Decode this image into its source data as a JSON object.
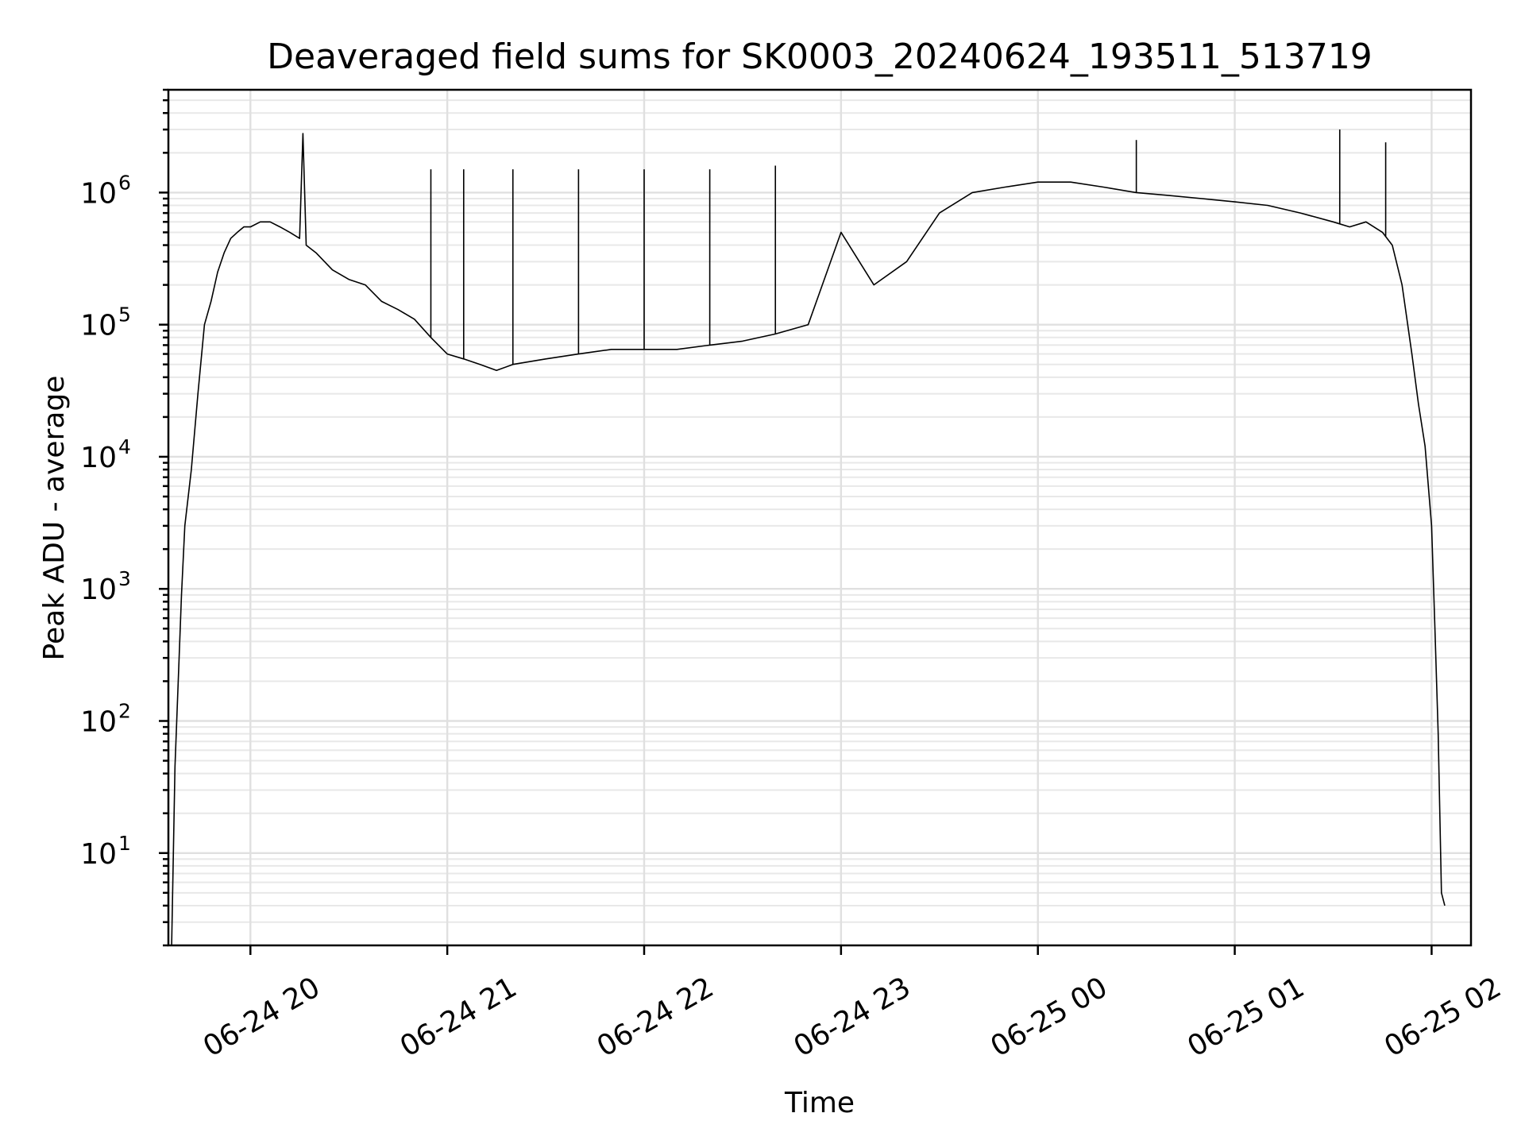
{
  "chart_data": {
    "type": "line",
    "title": "Deaveraged field sums for SK0003_20240624_193511_513719",
    "xlabel": "Time",
    "ylabel": "Peak ADU - average",
    "yscale": "log",
    "ylim": [
      2,
      6000000
    ],
    "xlim": [
      "2024-06-24 19:35",
      "2024-06-25 02:12"
    ],
    "grid": true,
    "legend": "none",
    "line_color": "#000000",
    "x_ticks": [
      {
        "value": "2024-06-24 20:00",
        "label": "06-24 20"
      },
      {
        "value": "2024-06-24 21:00",
        "label": "06-24 21"
      },
      {
        "value": "2024-06-24 22:00",
        "label": "06-24 22"
      },
      {
        "value": "2024-06-24 23:00",
        "label": "06-24 23"
      },
      {
        "value": "2024-06-25 00:00",
        "label": "06-25 00"
      },
      {
        "value": "2024-06-25 01:00",
        "label": "06-25 01"
      },
      {
        "value": "2024-06-25 02:00",
        "label": "06-25 02"
      }
    ],
    "y_ticks": [
      {
        "value": 10,
        "base": "10",
        "exp": "1"
      },
      {
        "value": 100,
        "base": "10",
        "exp": "2"
      },
      {
        "value": 1000,
        "base": "10",
        "exp": "3"
      },
      {
        "value": 10000,
        "base": "10",
        "exp": "4"
      },
      {
        "value": 100000,
        "base": "10",
        "exp": "5"
      },
      {
        "value": 1000000,
        "base": "10",
        "exp": "6"
      }
    ],
    "series": [
      {
        "x": [
          "2024-06-24 19:36",
          "2024-06-24 19:37",
          "2024-06-24 19:38",
          "2024-06-24 19:39",
          "2024-06-24 19:40",
          "2024-06-24 19:42",
          "2024-06-24 19:44",
          "2024-06-24 19:46",
          "2024-06-24 19:48",
          "2024-06-24 19:50",
          "2024-06-24 19:52",
          "2024-06-24 19:54",
          "2024-06-24 19:56",
          "2024-06-24 19:58",
          "2024-06-24 20:00",
          "2024-06-24 20:03",
          "2024-06-24 20:06",
          "2024-06-24 20:09",
          "2024-06-24 20:12",
          "2024-06-24 20:15",
          "2024-06-24 20:16",
          "2024-06-24 20:17",
          "2024-06-24 20:20",
          "2024-06-24 20:25",
          "2024-06-24 20:30",
          "2024-06-24 20:35",
          "2024-06-24 20:40",
          "2024-06-24 20:45",
          "2024-06-24 20:50",
          "2024-06-24 20:55",
          "2024-06-24 21:00",
          "2024-06-24 21:05",
          "2024-06-24 21:10",
          "2024-06-24 21:15",
          "2024-06-24 21:20",
          "2024-06-24 21:30",
          "2024-06-24 21:40",
          "2024-06-24 21:50",
          "2024-06-24 22:00",
          "2024-06-24 22:10",
          "2024-06-24 22:20",
          "2024-06-24 22:30",
          "2024-06-24 22:40",
          "2024-06-24 22:50",
          "2024-06-24 23:00",
          "2024-06-24 23:10",
          "2024-06-24 23:20",
          "2024-06-24 23:30",
          "2024-06-24 23:40",
          "2024-06-24 23:50",
          "2024-06-25 00:00",
          "2024-06-25 00:10",
          "2024-06-25 00:20",
          "2024-06-25 00:30",
          "2024-06-25 00:40",
          "2024-06-25 00:50",
          "2024-06-25 01:00",
          "2024-06-25 01:10",
          "2024-06-25 01:20",
          "2024-06-25 01:30",
          "2024-06-25 01:35",
          "2024-06-25 01:40",
          "2024-06-25 01:45",
          "2024-06-25 01:48",
          "2024-06-25 01:51",
          "2024-06-25 01:54",
          "2024-06-25 01:56",
          "2024-06-25 01:58",
          "2024-06-25 02:00",
          "2024-06-25 02:01",
          "2024-06-25 02:02",
          "2024-06-25 02:03",
          "2024-06-25 02:04"
        ],
        "y": [
          2,
          45,
          200,
          900,
          3000,
          8000,
          30000,
          100000,
          150000,
          250000,
          350000,
          450000,
          500000,
          550000,
          550000,
          600000,
          600000,
          550000,
          500000,
          450000,
          2800000,
          400000,
          350000,
          260000,
          220000,
          200000,
          150000,
          130000,
          110000,
          80000,
          60000,
          55000,
          50000,
          45000,
          50000,
          55000,
          60000,
          65000,
          65000,
          65000,
          70000,
          75000,
          85000,
          100000,
          500000,
          200000,
          300000,
          700000,
          1000000,
          1100000,
          1200000,
          1200000,
          1100000,
          1000000,
          950000,
          900000,
          850000,
          800000,
          700000,
          600000,
          550000,
          600000,
          500000,
          400000,
          200000,
          60000,
          25000,
          12000,
          3000,
          500,
          80,
          5,
          4
        ]
      }
    ],
    "spikes": [
      {
        "x": "2024-06-24 20:55",
        "y": 1500000
      },
      {
        "x": "2024-06-24 21:05",
        "y": 1500000
      },
      {
        "x": "2024-06-24 21:20",
        "y": 1500000
      },
      {
        "x": "2024-06-24 21:40",
        "y": 1500000
      },
      {
        "x": "2024-06-24 22:00",
        "y": 1500000
      },
      {
        "x": "2024-06-24 22:20",
        "y": 1500000
      },
      {
        "x": "2024-06-24 22:40",
        "y": 1600000
      },
      {
        "x": "2024-06-25 00:30",
        "y": 2500000
      },
      {
        "x": "2024-06-25 01:32",
        "y": 3000000
      },
      {
        "x": "2024-06-25 01:46",
        "y": 2400000
      }
    ]
  }
}
